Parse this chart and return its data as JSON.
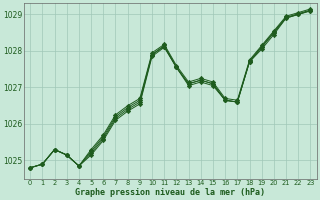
{
  "title": "Graphe pression niveau de la mer (hPa)",
  "bg_color": "#c8e8d8",
  "grid_color": "#a0c8b8",
  "line_color": "#1e5c1e",
  "marker": "D",
  "x_ticks": [
    0,
    1,
    2,
    3,
    4,
    5,
    6,
    7,
    8,
    9,
    10,
    11,
    12,
    13,
    14,
    15,
    16,
    17,
    18,
    19,
    20,
    21,
    22,
    23
  ],
  "ylim": [
    1024.5,
    1029.3
  ],
  "yticks": [
    1025,
    1026,
    1027,
    1028,
    1029
  ],
  "series": [
    [
      1024.8,
      1024.9,
      1025.3,
      1025.15,
      1024.85,
      1025.15,
      1025.55,
      1026.1,
      1026.35,
      1026.55,
      1027.85,
      1028.1,
      1027.55,
      1027.05,
      1027.15,
      1027.05,
      1026.65,
      1026.6,
      1027.7,
      1028.05,
      1028.45,
      1028.9,
      1029.0,
      1029.1
    ],
    [
      1024.8,
      1024.9,
      1025.3,
      1025.15,
      1024.85,
      1025.2,
      1025.6,
      1026.15,
      1026.4,
      1026.6,
      1027.9,
      1028.12,
      1027.55,
      1027.1,
      1027.2,
      1027.1,
      1026.65,
      1026.6,
      1027.7,
      1028.1,
      1028.5,
      1028.9,
      1029.0,
      1029.1
    ],
    [
      1024.8,
      1024.9,
      1025.3,
      1025.15,
      1024.85,
      1025.25,
      1025.65,
      1026.2,
      1026.45,
      1026.65,
      1027.9,
      1028.15,
      1027.55,
      1027.1,
      1027.2,
      1027.1,
      1026.65,
      1026.6,
      1027.72,
      1028.12,
      1028.52,
      1028.92,
      1029.02,
      1029.12
    ],
    [
      1024.8,
      1024.9,
      1025.3,
      1025.15,
      1024.85,
      1025.3,
      1025.7,
      1026.25,
      1026.5,
      1026.7,
      1027.95,
      1028.18,
      1027.6,
      1027.15,
      1027.25,
      1027.15,
      1026.7,
      1026.65,
      1027.75,
      1028.15,
      1028.55,
      1028.95,
      1029.05,
      1029.15
    ]
  ]
}
